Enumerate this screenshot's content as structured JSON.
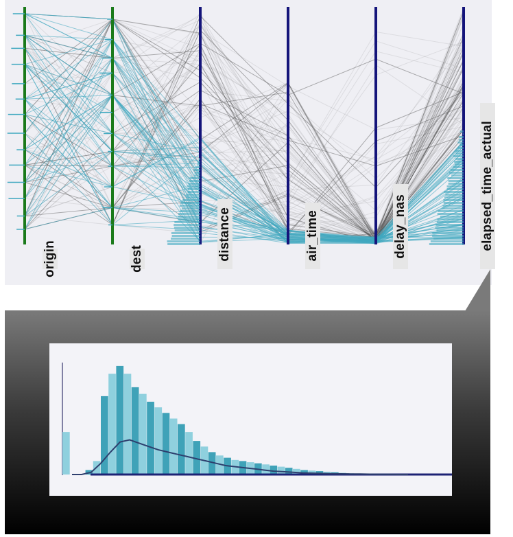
{
  "colors": {
    "categorical_axis": "#1a7a1a",
    "numeric_axis": "#14147a",
    "highlight": "#3fa8bf",
    "context_line": "#555555",
    "histogram_bar_light": "#8fd0de",
    "histogram_bar_dark": "#3fa2b8",
    "density_curve": "#2e3f6e"
  },
  "chart_data": [
    {
      "type": "parallel_coordinates",
      "axes": [
        {
          "name": "origin",
          "kind": "categorical"
        },
        {
          "name": "dest",
          "kind": "categorical"
        },
        {
          "name": "distance",
          "kind": "numeric"
        },
        {
          "name": "air_time",
          "kind": "numeric"
        },
        {
          "name": "delay_nas",
          "kind": "numeric"
        },
        {
          "name": "elapsed_time_actual",
          "kind": "numeric"
        }
      ],
      "highlighted_axis": "elapsed_time_actual"
    },
    {
      "type": "bar",
      "source_axis": "elapsed_time_actual",
      "values": [
        0.38,
        0,
        0,
        0.04,
        0.12,
        0.7,
        0.9,
        0.97,
        0.9,
        0.78,
        0.72,
        0.65,
        0.6,
        0.55,
        0.5,
        0.45,
        0.38,
        0.3,
        0.25,
        0.2,
        0.17,
        0.15,
        0.13,
        0.12,
        0.11,
        0.1,
        0.09,
        0.08,
        0.07,
        0.06,
        0.05,
        0.04,
        0.035,
        0.03,
        0.025,
        0.02,
        0.015,
        0.01,
        0.008,
        0.006,
        0.005,
        0.004
      ],
      "density_curve": [
        0.0,
        0.0,
        0.02,
        0.1,
        0.2,
        0.29,
        0.31,
        0.28,
        0.25,
        0.22,
        0.2,
        0.18,
        0.16,
        0.14,
        0.12,
        0.1,
        0.08,
        0.07,
        0.06,
        0.05,
        0.04,
        0.03,
        0.025,
        0.02,
        0.015,
        0.012,
        0.01,
        0.008,
        0.006,
        0.005,
        0.004,
        0.003,
        0.002,
        0.001,
        0.0,
        0.0
      ],
      "grid": false,
      "legend": "none"
    }
  ]
}
